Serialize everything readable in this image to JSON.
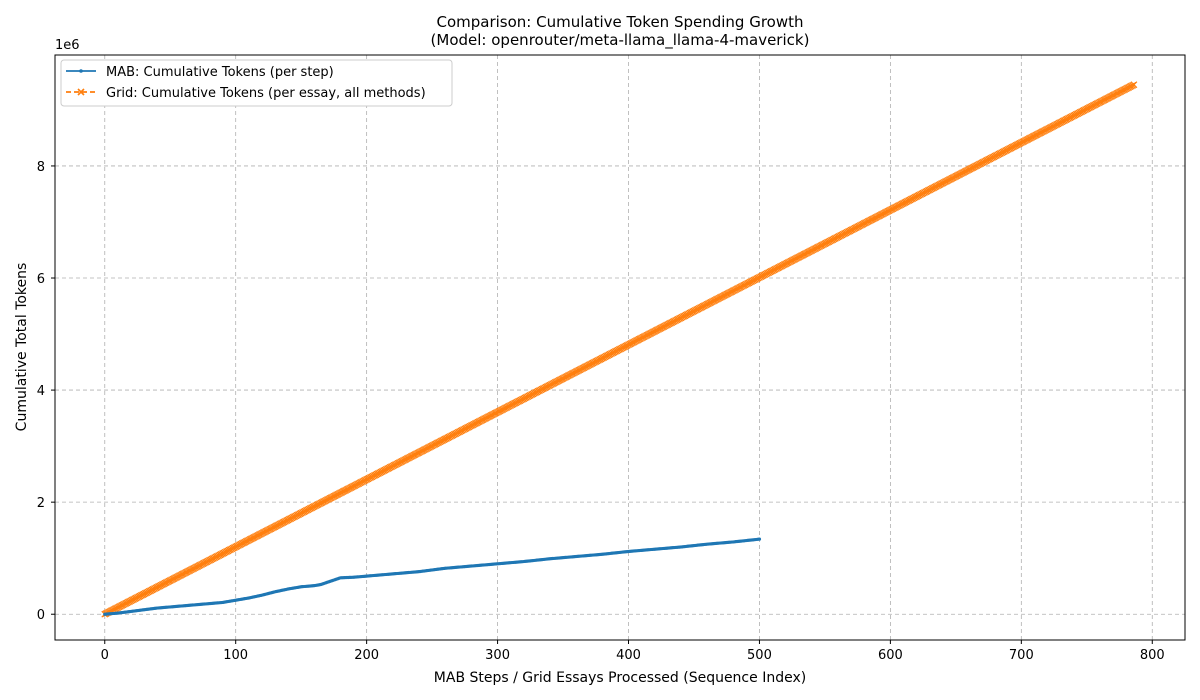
{
  "chart_data": {
    "type": "line",
    "title": "Comparison: Cumulative Token Spending Growth",
    "subtitle": "(Model: openrouter/meta-llama_llama-4-maverick)",
    "xlabel": "MAB Steps / Grid Essays Processed (Sequence Index)",
    "ylabel": "Cumulative Total Tokens",
    "y_offset_label": "1e6",
    "xlim": [
      -38,
      825
    ],
    "ylim": [
      -0.46,
      9.98
    ],
    "x_ticks": [
      0,
      100,
      200,
      300,
      400,
      500,
      600,
      700,
      800
    ],
    "y_ticks": [
      0,
      2,
      4,
      6,
      8
    ],
    "grid": true,
    "legend_position": "upper left",
    "series": [
      {
        "name": "MAB: Cumulative Tokens (per step)",
        "color": "#1f77b4",
        "marker": "dot",
        "line_style": "solid",
        "x": [
          0,
          10,
          20,
          30,
          40,
          50,
          60,
          70,
          80,
          90,
          100,
          110,
          120,
          130,
          140,
          150,
          160,
          165,
          170,
          175,
          180,
          190,
          200,
          210,
          220,
          230,
          240,
          250,
          260,
          270,
          280,
          290,
          300,
          320,
          340,
          360,
          380,
          400,
          420,
          440,
          460,
          480,
          500
        ],
        "values": [
          0,
          0.02,
          0.05,
          0.08,
          0.11,
          0.13,
          0.15,
          0.17,
          0.19,
          0.21,
          0.25,
          0.29,
          0.34,
          0.4,
          0.45,
          0.49,
          0.51,
          0.53,
          0.57,
          0.61,
          0.65,
          0.66,
          0.68,
          0.7,
          0.72,
          0.74,
          0.76,
          0.79,
          0.82,
          0.84,
          0.86,
          0.88,
          0.9,
          0.94,
          0.99,
          1.03,
          1.07,
          1.12,
          1.16,
          1.2,
          1.25,
          1.29,
          1.34
        ]
      },
      {
        "name": "Grid: Cumulative Tokens (per essay, all methods)",
        "color": "#ff7f0e",
        "marker": "x",
        "line_style": "dashed",
        "x": [
          0,
          786
        ],
        "values": [
          0,
          9.45
        ],
        "n_points": 787
      }
    ]
  }
}
